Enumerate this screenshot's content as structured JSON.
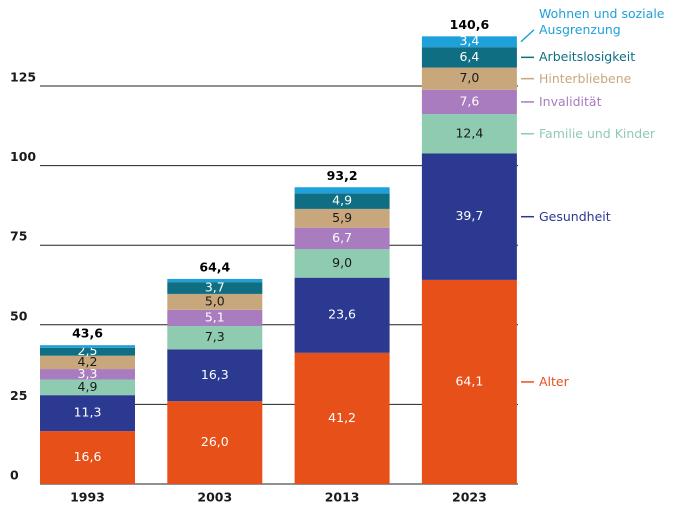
{
  "chart_data": {
    "type": "stacked_bar",
    "categories": [
      "1993",
      "2003",
      "2013",
      "2023"
    ],
    "series": [
      {
        "name": "Alter",
        "color": "#e8501a",
        "label_color": "#ffffff",
        "values": [
          16.6,
          26.0,
          41.2,
          64.1
        ],
        "value_labels": [
          "16,6",
          "26,0",
          "41,2",
          "64,1"
        ]
      },
      {
        "name": "Gesundheit",
        "color": "#2b3990",
        "label_color": "#ffffff",
        "values": [
          11.3,
          16.3,
          23.6,
          39.7
        ],
        "value_labels": [
          "11,3",
          "16,3",
          "23,6",
          "39,7"
        ]
      },
      {
        "name": "Familie und Kinder",
        "color": "#8fcbb0",
        "label_color": "#1a1a1a",
        "values": [
          4.9,
          7.3,
          9.0,
          12.4
        ],
        "value_labels": [
          "4,9",
          "7,3",
          "9,0",
          "12,4"
        ]
      },
      {
        "name": "Invalidität",
        "color": "#a97bbf",
        "label_color": "#ffffff",
        "values": [
          3.3,
          5.1,
          6.7,
          7.6
        ],
        "value_labels": [
          "3,3",
          "5,1",
          "6,7",
          "7,6"
        ]
      },
      {
        "name": "Hinterbliebene",
        "color": "#c9a77c",
        "label_color": "#1a1a1a",
        "values": [
          4.2,
          5.0,
          5.9,
          7.0
        ],
        "value_labels": [
          "4,2",
          "5,0",
          "5,9",
          "7,0"
        ]
      },
      {
        "name": "Arbeitslosigkeit",
        "color": "#0f6e82",
        "label_color": "#ffffff",
        "values": [
          2.5,
          3.7,
          4.9,
          6.4
        ],
        "value_labels": [
          "2,5",
          "3,7",
          "4,9",
          "6,4"
        ]
      },
      {
        "name": "Wohnen und soziale Ausgrenzung",
        "color": "#1ea0db",
        "label_color": "#ffffff",
        "values": [
          0.8,
          1.0,
          1.9,
          3.4
        ],
        "value_labels": [
          null,
          null,
          null,
          "3,4"
        ]
      }
    ],
    "totals": [
      43.6,
      64.4,
      93.2,
      140.6
    ],
    "total_labels": [
      "43,6",
      "64,4",
      "93,2",
      "140,6"
    ],
    "ylim": [
      0,
      145
    ],
    "yticks": [
      0,
      25,
      50,
      75,
      100,
      125
    ],
    "grid": true
  }
}
